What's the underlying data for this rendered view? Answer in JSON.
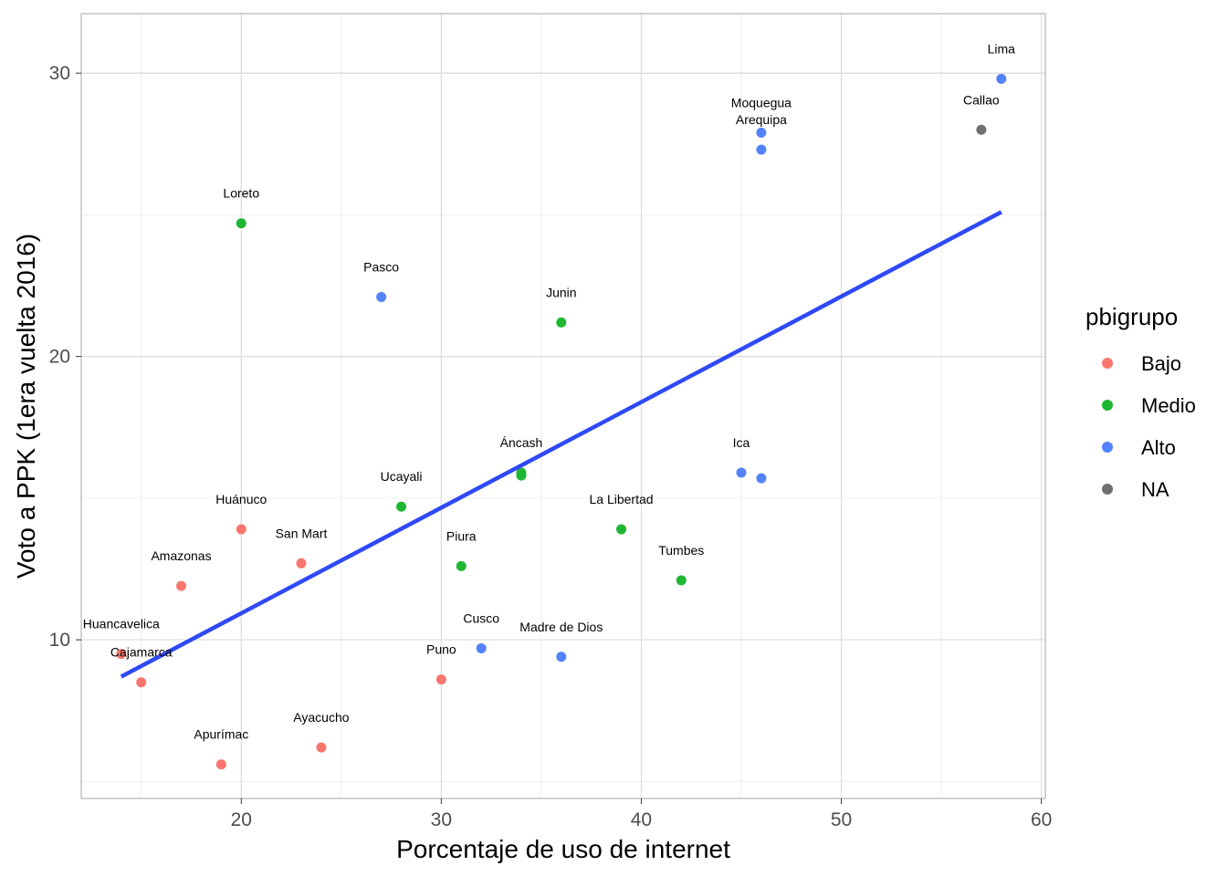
{
  "chart_data": {
    "type": "scatter",
    "xlabel": "Porcentaje de uso de internet",
    "ylabel": "Voto a PPK (1era vuelta 2016)",
    "xlim": [
      12,
      60.2
    ],
    "ylim": [
      4.4,
      32.1
    ],
    "x_ticks": [
      20,
      30,
      40,
      50,
      60
    ],
    "y_ticks": [
      10,
      20,
      30
    ],
    "grid": true,
    "legend": {
      "title": "pbigrupo",
      "position": "right",
      "entries": [
        {
          "name": "Bajo",
          "color": "#F8766D"
        },
        {
          "name": "Medio",
          "color": "#1FB732"
        },
        {
          "name": "Alto",
          "color": "#5383F8"
        },
        {
          "name": "NA",
          "color": "#6F6F6F"
        }
      ]
    },
    "trend_line": {
      "color": "#2E49F5",
      "x": [
        14,
        58
      ],
      "y": [
        8.7,
        25.1
      ]
    },
    "points": [
      {
        "label": "Huancavelica",
        "x": 14,
        "y": 9.5,
        "group": "Bajo"
      },
      {
        "label": "Cajamarca",
        "x": 15,
        "y": 8.5,
        "group": "Bajo"
      },
      {
        "label": "Amazonas",
        "x": 17,
        "y": 11.9,
        "group": "Bajo"
      },
      {
        "label": "Apurímac",
        "x": 19,
        "y": 5.6,
        "group": "Bajo"
      },
      {
        "label": "Huánuco",
        "x": 20,
        "y": 13.9,
        "group": "Bajo"
      },
      {
        "label": "Loreto",
        "x": 20,
        "y": 24.7,
        "group": "Medio"
      },
      {
        "label": "San Mart",
        "x": 23,
        "y": 12.7,
        "group": "Bajo"
      },
      {
        "label": "Ayacucho",
        "x": 24,
        "y": 6.2,
        "group": "Bajo"
      },
      {
        "label": "Pasco",
        "x": 27,
        "y": 22.1,
        "group": "Alto"
      },
      {
        "label": "Ucayali",
        "x": 28,
        "y": 14.7,
        "group": "Medio"
      },
      {
        "label": "Puno",
        "x": 30,
        "y": 8.6,
        "group": "Bajo"
      },
      {
        "label": "Piura",
        "x": 31,
        "y": 12.6,
        "group": "Medio"
      },
      {
        "label": "Cusco",
        "x": 32,
        "y": 9.7,
        "group": "Alto"
      },
      {
        "label": "Áncash",
        "x": 34,
        "y": 15.9,
        "group": "Medio"
      },
      {
        "label": "",
        "x": 34,
        "y": 15.8,
        "group": "Medio"
      },
      {
        "label": "Junin",
        "x": 36,
        "y": 21.2,
        "group": "Medio"
      },
      {
        "label": "Madre de Dios",
        "x": 36,
        "y": 9.4,
        "group": "Alto"
      },
      {
        "label": "La Libertad",
        "x": 39,
        "y": 13.9,
        "group": "Medio"
      },
      {
        "label": "Tumbes",
        "x": 42,
        "y": 12.1,
        "group": "Medio"
      },
      {
        "label": "Ica",
        "x": 45,
        "y": 15.9,
        "group": "Alto"
      },
      {
        "label": "",
        "x": 46,
        "y": 15.7,
        "group": "Alto"
      },
      {
        "label": "Moquegua",
        "x": 46,
        "y": 27.9,
        "group": "Alto"
      },
      {
        "label": "Arequipa",
        "x": 46,
        "y": 27.3,
        "group": "Alto"
      },
      {
        "label": "Callao",
        "x": 57,
        "y": 28.0,
        "group": "NA"
      },
      {
        "label": "Lima",
        "x": 58,
        "y": 29.8,
        "group": "Alto"
      }
    ]
  }
}
